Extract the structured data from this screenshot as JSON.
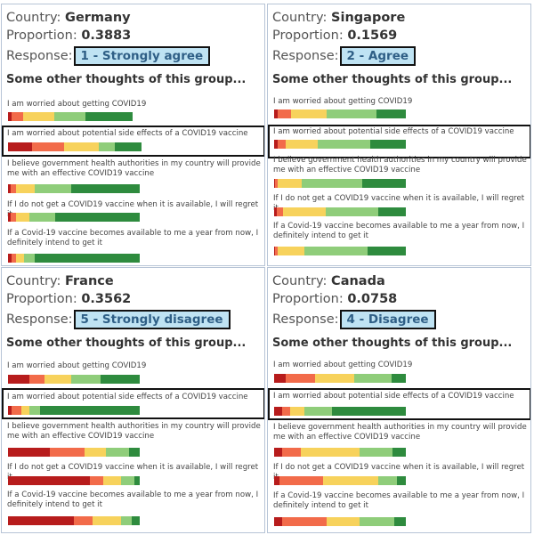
{
  "labels": {
    "country": "Country:",
    "proportion": "Proportion:",
    "response": "Response:",
    "other_title": "Some other thoughts of this group..."
  },
  "colors": {
    "strongly_agree": "#2e8b3e",
    "agree": "#8fcd7a",
    "neutral": "#f7d25c",
    "disagree": "#f26b4a",
    "strongly_disagree": "#b71c1c",
    "response_box_bg": "#bfe3f3",
    "response_text": "#2f5f86"
  },
  "panels": [
    {
      "country": "Germany",
      "proportion": "0.3883",
      "response": "1 - Strongly agree",
      "highlighted_question": 1,
      "questions": [
        {
          "text": "I am worried about getting COVID19",
          "dist": [
            0.03,
            0.09,
            0.25,
            0.25,
            0.38
          ]
        },
        {
          "text": "I am worried about potential side effects of a COVID19 vaccine",
          "dist": [
            0.18,
            0.24,
            0.26,
            0.12,
            0.2
          ]
        },
        {
          "text": "I believe government health authorities in my country will provide me with an effective COVID19 vaccine",
          "dist": [
            0.02,
            0.04,
            0.14,
            0.28,
            0.52
          ]
        },
        {
          "text": "If I do not get a COVID19 vaccine when it is available, I will regret it",
          "dist": [
            0.02,
            0.04,
            0.1,
            0.2,
            0.64
          ]
        },
        {
          "text": "If a Covid-19 vaccine becomes available to me a year from now, I definitely intend to get it",
          "dist": [
            0.03,
            0.03,
            0.06,
            0.08,
            0.8
          ]
        }
      ]
    },
    {
      "country": "Singapore",
      "proportion": "0.1569",
      "response": "2 - Agree",
      "highlighted_question": 1,
      "questions": [
        {
          "text": "I am worried about getting COVID19",
          "dist": [
            0.03,
            0.1,
            0.27,
            0.38,
            0.22
          ]
        },
        {
          "text": "I am worried about potential side effects of a COVID19 vaccine",
          "dist": [
            0.03,
            0.06,
            0.24,
            0.4,
            0.27
          ]
        },
        {
          "text": "I believe government health authorities in my country will provide me with an effective COVID19 vaccine",
          "dist": [
            0.01,
            0.02,
            0.18,
            0.46,
            0.33
          ]
        },
        {
          "text": "If I do not get a COVID19 vaccine when it is available, I will regret it",
          "dist": [
            0.02,
            0.05,
            0.32,
            0.4,
            0.21
          ]
        },
        {
          "text": "If a Covid-19 vaccine becomes available to me a year from now, I definitely intend to get it",
          "dist": [
            0.01,
            0.02,
            0.2,
            0.48,
            0.29
          ]
        }
      ]
    },
    {
      "country": "France",
      "proportion": "0.3562",
      "response": "5 - Strongly disagree",
      "highlighted_question": 1,
      "questions": [
        {
          "text": "I am worried about getting COVID19",
          "dist": [
            0.16,
            0.12,
            0.2,
            0.22,
            0.3
          ]
        },
        {
          "text": "I am worried about potential side effects of a COVID19 vaccine",
          "dist": [
            0.03,
            0.07,
            0.06,
            0.08,
            0.76
          ]
        },
        {
          "text": "I believe government health authorities in my country will provide me with an effective COVID19 vaccine",
          "dist": [
            0.32,
            0.26,
            0.16,
            0.18,
            0.08
          ]
        },
        {
          "text": "If I do not get a COVID19 vaccine when it is available, I will regret it",
          "dist": [
            0.62,
            0.1,
            0.14,
            0.1,
            0.04
          ]
        },
        {
          "text": "If a Covid-19 vaccine becomes available to me a year from now, I definitely intend to get it",
          "dist": [
            0.5,
            0.14,
            0.22,
            0.08,
            0.06
          ]
        }
      ]
    },
    {
      "country": "Canada",
      "proportion": "0.0758",
      "response": "4 - Disagree",
      "highlighted_question": 1,
      "questions": [
        {
          "text": "I am worried about getting COVID19",
          "dist": [
            0.09,
            0.22,
            0.3,
            0.28,
            0.11
          ]
        },
        {
          "text": "I am worried about potential side effects of a COVID19 vaccine",
          "dist": [
            0.06,
            0.06,
            0.11,
            0.21,
            0.56
          ]
        },
        {
          "text": "I believe government health authorities in my country will provide me with an effective COVID19 vaccine",
          "dist": [
            0.06,
            0.14,
            0.45,
            0.25,
            0.1
          ]
        },
        {
          "text": "If I do not get a COVID19 vaccine when it is available, I will regret it",
          "dist": [
            0.04,
            0.33,
            0.42,
            0.14,
            0.07
          ]
        },
        {
          "text": "If a Covid-19 vaccine becomes available to me a year from now, I definitely intend to get it",
          "dist": [
            0.06,
            0.34,
            0.25,
            0.26,
            0.09
          ]
        }
      ]
    }
  ]
}
